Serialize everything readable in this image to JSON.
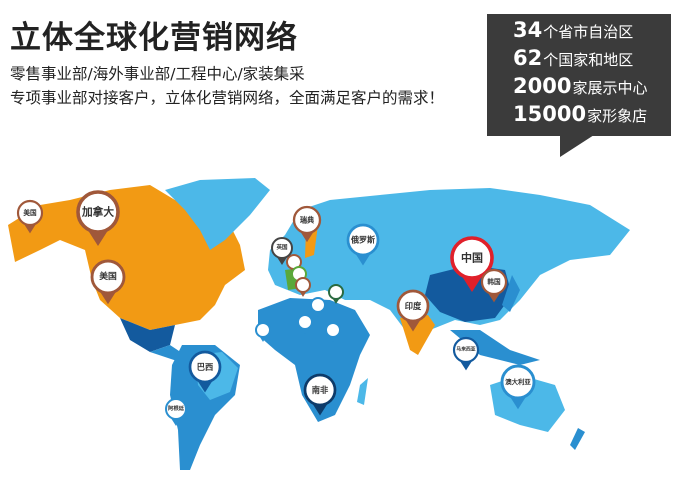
{
  "header": {
    "title": "立体全球化营销网络",
    "subtitle1": "零售事业部/海外事业部/工程中心/家装集采",
    "subtitle2": "专项事业部对接客户，立体化营销网络，全面满足客户的需求！"
  },
  "stats": [
    {
      "num": "34",
      "text": "个省市自治区"
    },
    {
      "num": "62",
      "text": "个国家和地区"
    },
    {
      "num": "2000",
      "text": "家展示中心"
    },
    {
      "num": "15000",
      "text": "家形象店"
    }
  ],
  "colors": {
    "north_america": "#f29a14",
    "light_blue": "#4cb8e8",
    "mid_blue": "#2a8fd0",
    "dark_blue": "#135a9e",
    "china_pin": "#e0202a",
    "brown_pin": "#a0583a",
    "stats_box": "#3b3b3b"
  },
  "pins": [
    {
      "label": "美国"
    },
    {
      "label": "加拿大"
    },
    {
      "label": "美国"
    },
    {
      "label": "瑞典"
    },
    {
      "label": "英国"
    },
    {
      "label": "俄罗斯"
    },
    {
      "label": "中国"
    },
    {
      "label": "韩国"
    },
    {
      "label": "印度"
    },
    {
      "label": "马来西亚"
    },
    {
      "label": "澳大利亚"
    },
    {
      "label": "巴西"
    },
    {
      "label": "南非"
    },
    {
      "label": "阿根廷"
    }
  ]
}
